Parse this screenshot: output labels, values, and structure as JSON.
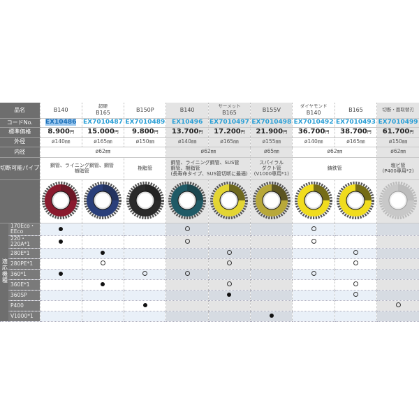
{
  "labels": {
    "name": "品名",
    "code": "コードNo.",
    "price": "標準価格",
    "outer": "外径",
    "inner": "内径",
    "pipe": "切断可能パイプ",
    "compat": "適応機種",
    "yen": "円"
  },
  "groups": [
    {
      "label": "超硬",
      "over_column": 2
    },
    {
      "label": "サーメット",
      "over_column": 5
    },
    {
      "label": "ダイヤモンド",
      "over_column": 7
    },
    {
      "label": "切断・面取替刃",
      "over_column": 9
    }
  ],
  "products": [
    {
      "model": "B140",
      "code": "EX10486",
      "price": "8.900",
      "outer": "ø140㎜",
      "blade_color": "#8a1a2e",
      "selected": true
    },
    {
      "model": "B165",
      "code": "EX7010487",
      "price": "15.000",
      "outer": "ø165㎜",
      "blade_color": "#2a3f7a"
    },
    {
      "model": "B150P",
      "code": "EX7010489",
      "price": "9.800",
      "outer": "ø150㎜",
      "blade_color": "#2a2a2a"
    },
    {
      "model": "B140",
      "code": "EX10496",
      "price": "13.700",
      "outer": "ø140㎜",
      "blade_color": "#1f5a66"
    },
    {
      "model": "B165",
      "code": "EX7010497",
      "price": "17.200",
      "outer": "ø165㎜",
      "blade_color": "#e3d534"
    },
    {
      "model": "B155V",
      "code": "EX7010498",
      "price": "21.900",
      "outer": "ø155㎜",
      "blade_color": "#b8a83a"
    },
    {
      "model": "B140",
      "code": "EX7010492",
      "price": "36.700",
      "outer": "ø140㎜",
      "blade_color": "#f0dc1e"
    },
    {
      "model": "B165",
      "code": "EX7010493",
      "price": "38.700",
      "outer": "ø165㎜",
      "blade_color": "#f0dc1e"
    },
    {
      "model": "",
      "code": "EX7010499",
      "price": "61.700",
      "outer": "ø150㎜",
      "blade_color": "#c8c8c8"
    }
  ],
  "inner": [
    {
      "value": "ø62㎜",
      "span": 3
    },
    {
      "value": "ø62㎜",
      "span": 2
    },
    {
      "value": "ø65㎜",
      "span": 1
    },
    {
      "value": "ø62㎜",
      "span": 2
    },
    {
      "value": "ø62㎜",
      "span": 1
    }
  ],
  "pipes": [
    {
      "lines": [
        "鋼管、ライニング鋼管、鋼管",
        "樹脂管"
      ],
      "span": 2
    },
    {
      "lines": [
        "樹脂管"
      ],
      "span": 1
    },
    {
      "lines": [
        "鋼管、ライニング鋼管、SUS管",
        "鋼管、樹脂管",
        "(長寿命タイプ、SUS管切断に最適)"
      ],
      "span": 2
    },
    {
      "lines": [
        "スパイラル",
        "ダクト管",
        "(V1000専用*1)"
      ],
      "span": 1
    },
    {
      "lines": [
        "鋳鉄管"
      ],
      "span": 2
    },
    {
      "lines": [
        "塩ビ管",
        "(P400専用*2)"
      ],
      "span": 1
    }
  ],
  "compat": [
    {
      "machine": "170Eco・EEco",
      "marks": [
        "●",
        "",
        "",
        "○",
        "",
        "",
        "○",
        "",
        ""
      ]
    },
    {
      "machine": "220・220A*1",
      "marks": [
        "●",
        "",
        "",
        "○",
        "",
        "",
        "○",
        "",
        ""
      ]
    },
    {
      "machine": "280E*1",
      "marks": [
        "",
        "●",
        "",
        "",
        "○",
        "",
        "",
        "○",
        ""
      ]
    },
    {
      "machine": "280PE*1",
      "marks": [
        "",
        "○",
        "",
        "",
        "○",
        "",
        "",
        "○",
        ""
      ]
    },
    {
      "machine": "360*1",
      "marks": [
        "●",
        "",
        "○",
        "○",
        "",
        "",
        "○",
        "",
        ""
      ]
    },
    {
      "machine": "360E*1",
      "marks": [
        "",
        "●",
        "",
        "",
        "○",
        "",
        "",
        "○",
        ""
      ]
    },
    {
      "machine": "360SP",
      "marks": [
        "",
        "",
        "",
        "",
        "●",
        "",
        "",
        "○",
        ""
      ]
    },
    {
      "machine": "P400",
      "marks": [
        "",
        "",
        "●",
        "",
        "",
        "",
        "",
        "",
        "○"
      ]
    },
    {
      "machine": "V1000*1",
      "marks": [
        "",
        "",
        "",
        "",
        "",
        "●",
        "",
        "",
        ""
      ]
    }
  ],
  "legend": {
    "filled": "●",
    "open": "○"
  },
  "column_shading": [
    "w",
    "w",
    "w",
    "g",
    "g",
    "g",
    "w",
    "w",
    "g"
  ]
}
